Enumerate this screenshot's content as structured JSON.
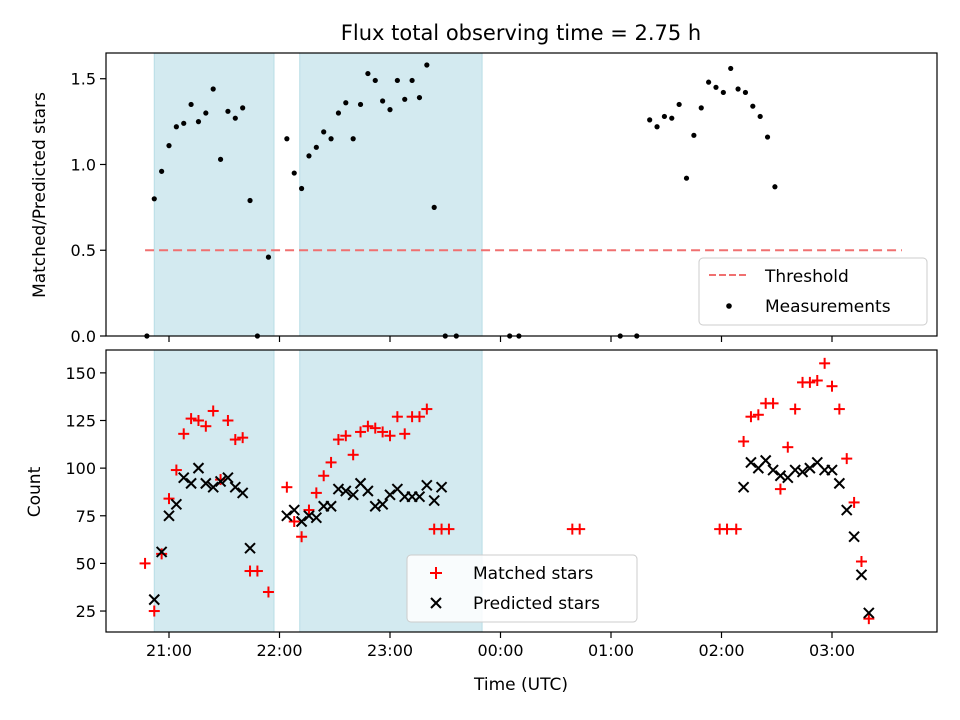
{
  "chart_data": [
    {
      "type": "scatter",
      "title": "Flux total observing time = 2.75 h",
      "xlabel": "",
      "ylabel": "Matched/Predicted stars",
      "ylim": [
        0,
        1.65
      ],
      "yticks": [
        "0.0",
        "0.5",
        "1.0",
        "1.5"
      ],
      "grid": false,
      "legend_position": "lower right",
      "shaded_intervals_utc": [
        [
          "20:52",
          "21:57"
        ],
        [
          "22:11",
          "23:50"
        ]
      ],
      "shade_color": "#d3eaf0",
      "threshold": {
        "name": "Threshold",
        "value": 0.5,
        "x_range": [
          "20:47",
          "03:38"
        ],
        "color": "#f07070",
        "style": "dashed"
      },
      "series": [
        {
          "name": "Measurements",
          "color": "#000000",
          "marker": "dot",
          "points": [
            [
              "20:48",
              0.0
            ],
            [
              "20:52",
              0.8
            ],
            [
              "20:56",
              0.96
            ],
            [
              "21:00",
              1.11
            ],
            [
              "21:04",
              1.22
            ],
            [
              "21:08",
              1.24
            ],
            [
              "21:12",
              1.35
            ],
            [
              "21:16",
              1.25
            ],
            [
              "21:20",
              1.3
            ],
            [
              "21:24",
              1.44
            ],
            [
              "21:28",
              1.03
            ],
            [
              "21:32",
              1.31
            ],
            [
              "21:36",
              1.27
            ],
            [
              "21:40",
              1.33
            ],
            [
              "21:44",
              0.79
            ],
            [
              "21:48",
              0.0
            ],
            [
              "21:54",
              0.46
            ],
            [
              "22:04",
              1.15
            ],
            [
              "22:08",
              0.95
            ],
            [
              "22:12",
              0.86
            ],
            [
              "22:16",
              1.05
            ],
            [
              "22:20",
              1.1
            ],
            [
              "22:24",
              1.19
            ],
            [
              "22:28",
              1.15
            ],
            [
              "22:32",
              1.3
            ],
            [
              "22:36",
              1.36
            ],
            [
              "22:40",
              1.15
            ],
            [
              "22:44",
              1.35
            ],
            [
              "22:48",
              1.53
            ],
            [
              "22:52",
              1.49
            ],
            [
              "22:56",
              1.37
            ],
            [
              "23:00",
              1.32
            ],
            [
              "23:04",
              1.49
            ],
            [
              "23:08",
              1.38
            ],
            [
              "23:12",
              1.49
            ],
            [
              "23:16",
              1.39
            ],
            [
              "23:20",
              1.58
            ],
            [
              "23:24",
              0.75
            ],
            [
              "23:30",
              0.0
            ],
            [
              "23:36",
              0.0
            ],
            [
              "00:05",
              0.0
            ],
            [
              "00:10",
              0.0
            ],
            [
              "01:05",
              0.0
            ],
            [
              "01:14",
              0.0
            ],
            [
              "01:21",
              1.26
            ],
            [
              "01:25",
              1.22
            ],
            [
              "01:29",
              1.28
            ],
            [
              "01:33",
              1.27
            ],
            [
              "01:37",
              1.35
            ],
            [
              "01:41",
              0.92
            ],
            [
              "01:45",
              1.17
            ],
            [
              "01:49",
              1.33
            ],
            [
              "01:53",
              1.48
            ],
            [
              "01:57",
              1.45
            ],
            [
              "02:01",
              1.42
            ],
            [
              "02:05",
              1.56
            ],
            [
              "02:09",
              1.44
            ],
            [
              "02:13",
              1.42
            ],
            [
              "02:17",
              1.34
            ],
            [
              "02:21",
              1.28
            ],
            [
              "02:25",
              1.16
            ],
            [
              "02:29",
              0.87
            ]
          ]
        }
      ]
    },
    {
      "type": "scatter",
      "title": "",
      "xlabel": "Time (UTC)",
      "ylabel": "Count",
      "ylim": [
        14,
        162
      ],
      "yticks": [
        "25",
        "50",
        "75",
        "100",
        "125",
        "150"
      ],
      "xticks": [
        "21:00",
        "22:00",
        "23:00",
        "00:00",
        "01:00",
        "02:00",
        "03:00"
      ],
      "grid": false,
      "legend_position": "lower center",
      "shaded_intervals_utc": [
        [
          "20:52",
          "21:57"
        ],
        [
          "22:11",
          "23:50"
        ]
      ],
      "shade_color": "#d3eaf0",
      "series": [
        {
          "name": "Matched stars",
          "color": "#ff0000",
          "marker": "plus",
          "points": [
            [
              "20:47",
              50
            ],
            [
              "20:52",
              25
            ],
            [
              "20:56",
              55
            ],
            [
              "21:00",
              84
            ],
            [
              "21:04",
              99
            ],
            [
              "21:08",
              118
            ],
            [
              "21:12",
              126
            ],
            [
              "21:16",
              125
            ],
            [
              "21:20",
              122
            ],
            [
              "21:24",
              130
            ],
            [
              "21:28",
              94
            ],
            [
              "21:32",
              125
            ],
            [
              "21:36",
              115
            ],
            [
              "21:40",
              116
            ],
            [
              "21:44",
              46
            ],
            [
              "21:48",
              46
            ],
            [
              "21:54",
              35
            ],
            [
              "22:04",
              90
            ],
            [
              "22:08",
              72
            ],
            [
              "22:12",
              64
            ],
            [
              "22:16",
              78
            ],
            [
              "22:20",
              87
            ],
            [
              "22:24",
              96
            ],
            [
              "22:28",
              103
            ],
            [
              "22:32",
              115
            ],
            [
              "22:36",
              117
            ],
            [
              "22:40",
              107
            ],
            [
              "22:44",
              119
            ],
            [
              "22:48",
              122
            ],
            [
              "22:52",
              121
            ],
            [
              "22:56",
              119
            ],
            [
              "23:00",
              117
            ],
            [
              "23:04",
              127
            ],
            [
              "23:08",
              118
            ],
            [
              "23:12",
              127
            ],
            [
              "23:16",
              127
            ],
            [
              "23:20",
              131
            ],
            [
              "23:24",
              68
            ],
            [
              "23:28",
              68
            ],
            [
              "23:32",
              68
            ],
            [
              "00:39",
              68
            ],
            [
              "00:43",
              68
            ],
            [
              "01:59",
              68
            ],
            [
              "02:03",
              68
            ],
            [
              "02:08",
              68
            ],
            [
              "02:12",
              114
            ],
            [
              "02:16",
              127
            ],
            [
              "02:20",
              128
            ],
            [
              "02:24",
              134
            ],
            [
              "02:28",
              134
            ],
            [
              "02:32",
              89
            ],
            [
              "02:36",
              111
            ],
            [
              "02:40",
              131
            ],
            [
              "02:44",
              145
            ],
            [
              "02:48",
              145
            ],
            [
              "02:52",
              146
            ],
            [
              "02:56",
              155
            ],
            [
              "03:00",
              143
            ],
            [
              "03:04",
              131
            ],
            [
              "03:08",
              105
            ],
            [
              "03:12",
              82
            ],
            [
              "03:16",
              51
            ],
            [
              "03:20",
              21
            ]
          ]
        },
        {
          "name": "Predicted stars",
          "color": "#000000",
          "marker": "x",
          "points": [
            [
              "20:52",
              31
            ],
            [
              "20:56",
              56
            ],
            [
              "21:00",
              75
            ],
            [
              "21:04",
              81
            ],
            [
              "21:08",
              95
            ],
            [
              "21:12",
              92
            ],
            [
              "21:16",
              100
            ],
            [
              "21:20",
              92
            ],
            [
              "21:24",
              90
            ],
            [
              "21:28",
              93
            ],
            [
              "21:32",
              95
            ],
            [
              "21:36",
              90
            ],
            [
              "21:40",
              87
            ],
            [
              "21:44",
              58
            ],
            [
              "22:04",
              75
            ],
            [
              "22:08",
              78
            ],
            [
              "22:12",
              72
            ],
            [
              "22:16",
              75
            ],
            [
              "22:20",
              74
            ],
            [
              "22:24",
              80
            ],
            [
              "22:28",
              80
            ],
            [
              "22:32",
              89
            ],
            [
              "22:36",
              88
            ],
            [
              "22:40",
              86
            ],
            [
              "22:44",
              92
            ],
            [
              "22:48",
              88
            ],
            [
              "22:52",
              80
            ],
            [
              "22:56",
              81
            ],
            [
              "23:00",
              86
            ],
            [
              "23:04",
              89
            ],
            [
              "23:08",
              85
            ],
            [
              "23:12",
              85
            ],
            [
              "23:16",
              85
            ],
            [
              "23:20",
              91
            ],
            [
              "23:24",
              83
            ],
            [
              "23:28",
              90
            ],
            [
              "02:12",
              90
            ],
            [
              "02:16",
              103
            ],
            [
              "02:20",
              100
            ],
            [
              "02:24",
              104
            ],
            [
              "02:28",
              99
            ],
            [
              "02:32",
              96
            ],
            [
              "02:36",
              95
            ],
            [
              "02:40",
              99
            ],
            [
              "02:44",
              98
            ],
            [
              "02:48",
              100
            ],
            [
              "02:52",
              103
            ],
            [
              "02:56",
              99
            ],
            [
              "03:00",
              99
            ],
            [
              "03:04",
              92
            ],
            [
              "03:08",
              78
            ],
            [
              "03:12",
              64
            ],
            [
              "03:16",
              44
            ],
            [
              "03:20",
              24
            ]
          ]
        }
      ]
    }
  ]
}
